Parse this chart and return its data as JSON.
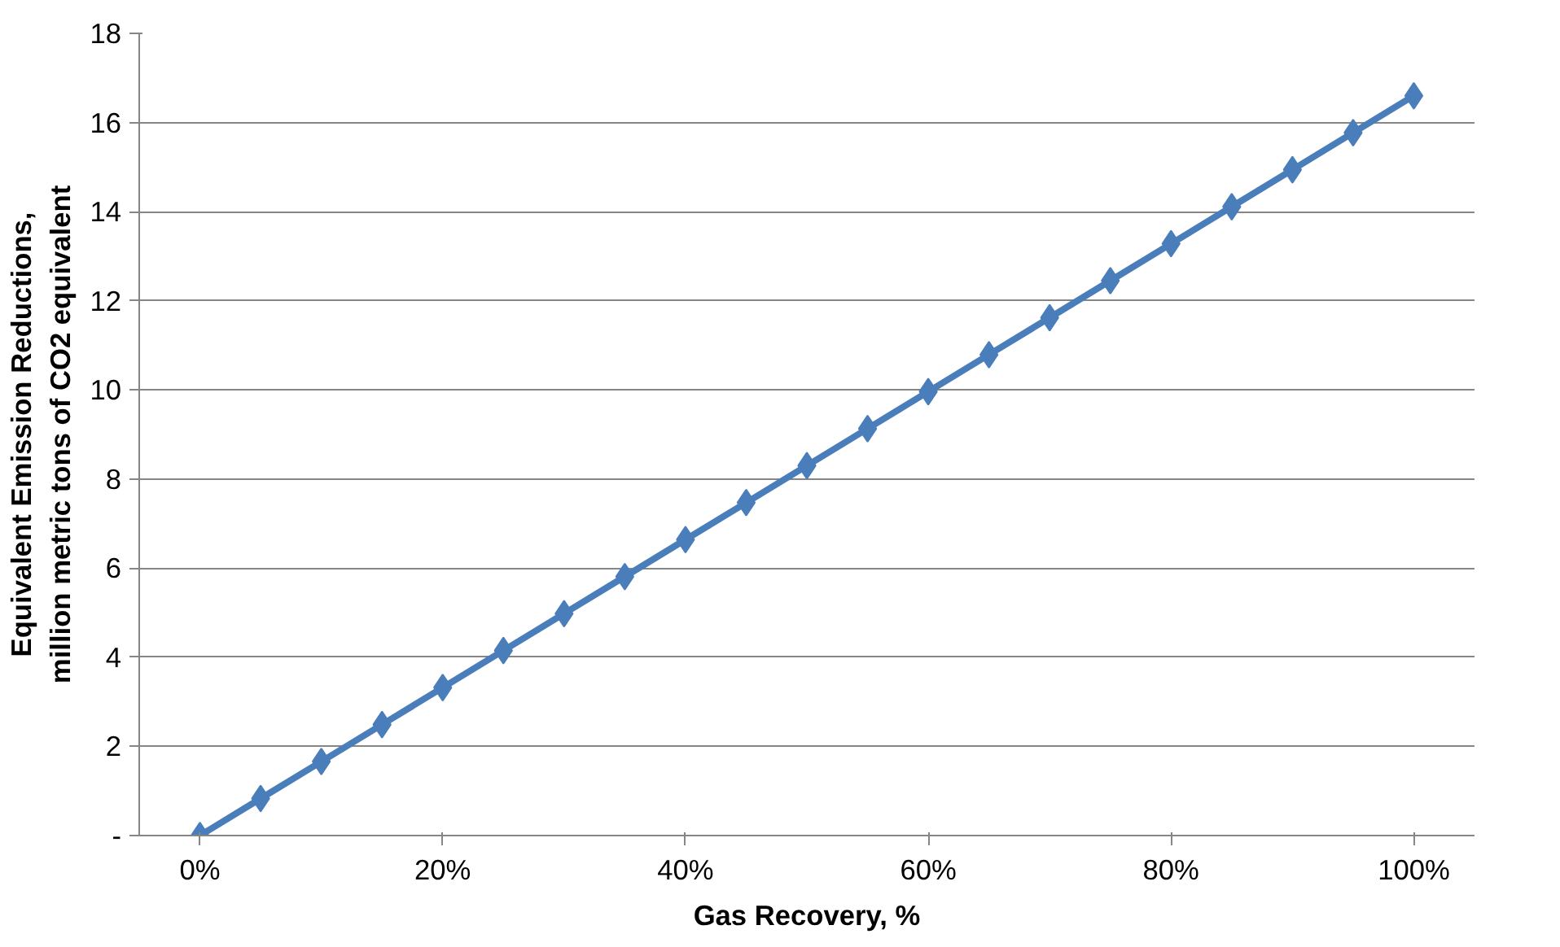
{
  "chart_data": {
    "type": "line",
    "xlabel": "Gas Recovery, %",
    "ylabel": "Equivalent Emission Reductions,\nmillion metric tons of CO2 equivalent",
    "x": [
      0,
      5,
      10,
      15,
      20,
      25,
      30,
      35,
      40,
      45,
      50,
      55,
      60,
      65,
      70,
      75,
      80,
      85,
      90,
      95,
      100
    ],
    "series": [
      {
        "color": "#4a7ebb",
        "values": [
          0,
          0.83,
          1.66,
          2.49,
          3.32,
          4.15,
          4.98,
          5.81,
          6.64,
          7.47,
          8.3,
          9.13,
          9.96,
          10.79,
          11.62,
          12.45,
          13.28,
          14.11,
          14.94,
          15.77,
          16.6
        ]
      }
    ],
    "xlim": [
      -5,
      105
    ],
    "xticks": [
      {
        "value": 0,
        "label": "0%"
      },
      {
        "value": 20,
        "label": "20%"
      },
      {
        "value": 40,
        "label": "40%"
      },
      {
        "value": 60,
        "label": "60%"
      },
      {
        "value": 80,
        "label": "80%"
      },
      {
        "value": 100,
        "label": "100%"
      }
    ],
    "ylim": [
      0,
      18
    ],
    "yticks": [
      {
        "value": 0,
        "label": "-"
      },
      2,
      4,
      6,
      8,
      10,
      12,
      14,
      16,
      18
    ],
    "grid": "y",
    "marker": "diamond",
    "line_style": "solid"
  }
}
